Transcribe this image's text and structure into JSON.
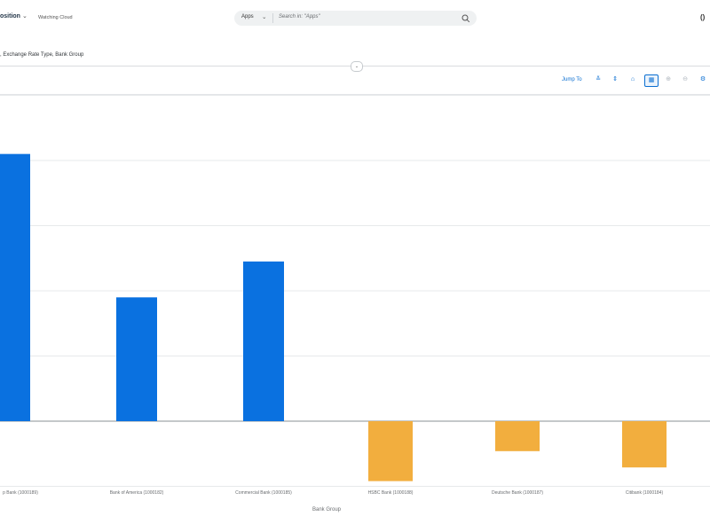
{
  "header": {
    "app_title": "osition",
    "subtitle": "Watching Cloud",
    "search": {
      "scope": "Apps",
      "placeholder": "Search in: \"Apps\""
    }
  },
  "filter_text": ", Exchange Rate Type, Bank Group",
  "toolbar": {
    "jump_label": "Jump To"
  },
  "chart_data": {
    "type": "bar",
    "categories": [
      "p Bank (1000189)",
      "Bank of America (1000182)",
      "Commercial Bank (1000185)",
      "HSBC Bank (1000188)",
      "Deutsche Bank (1000187)",
      "Citibank (1000184)"
    ],
    "values": [
      4.1,
      1.9,
      2.45,
      -0.92,
      -0.46,
      -0.71
    ],
    "xlabel": "Bank Group",
    "ylabel": "",
    "ylim": [
      -1,
      5
    ],
    "grid": true,
    "colors": {
      "positive": "#0a71e0",
      "negative": "#f2ae3e"
    }
  }
}
